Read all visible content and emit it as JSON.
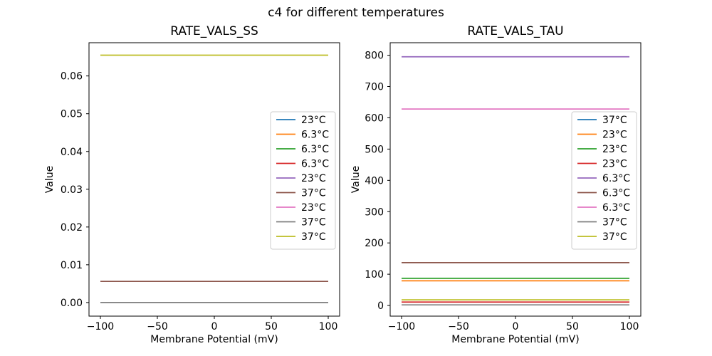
{
  "figure": {
    "suptitle": "c4 for different temperatures",
    "background_color": "#ffffff",
    "text_color": "#000000"
  },
  "chart_data": [
    {
      "type": "line",
      "title": "RATE_VALS_SS",
      "xlabel": "Membrane Potential (mV)",
      "ylabel": "Value",
      "grid": false,
      "legend_position": "center-right",
      "xlim": [
        -110,
        110
      ],
      "ylim": [
        -0.0036,
        0.0688
      ],
      "x_span": [
        -100,
        100
      ],
      "xticks": [
        -100,
        -50,
        0,
        50,
        100
      ],
      "xtick_labels": [
        "−100",
        "−50",
        "0",
        "50",
        "100"
      ],
      "yticks": [
        0,
        0.01,
        0.02,
        0.03,
        0.04,
        0.05,
        0.06
      ],
      "ytick_labels": [
        "0.00",
        "0.01",
        "0.02",
        "0.03",
        "0.04",
        "0.05",
        "0.06"
      ],
      "series": [
        {
          "label": "23°C",
          "color": "#1f77b4",
          "value": null
        },
        {
          "label": "6.3°C",
          "color": "#ff7f0e",
          "value": null
        },
        {
          "label": "6.3°C",
          "color": "#2ca02c",
          "value": null
        },
        {
          "label": "6.3°C",
          "color": "#d62728",
          "value": null
        },
        {
          "label": "23°C",
          "color": "#9467bd",
          "value": null
        },
        {
          "label": "37°C",
          "color": "#8c564b",
          "value": 0.0056
        },
        {
          "label": "23°C",
          "color": "#e377c2",
          "value": null
        },
        {
          "label": "37°C",
          "color": "#7f7f7f",
          "value": 0.0
        },
        {
          "label": "37°C",
          "color": "#bcbd22",
          "value": 0.0655
        }
      ]
    },
    {
      "type": "line",
      "title": "RATE_VALS_TAU",
      "xlabel": "Membrane Potential (mV)",
      "ylabel": "Value",
      "grid": false,
      "legend_position": "center-right",
      "xlim": [
        -110,
        110
      ],
      "ylim": [
        -34,
        840
      ],
      "x_span": [
        -100,
        100
      ],
      "xticks": [
        -100,
        -50,
        0,
        50,
        100
      ],
      "xtick_labels": [
        "−100",
        "−50",
        "0",
        "50",
        "100"
      ],
      "yticks": [
        0,
        100,
        200,
        300,
        400,
        500,
        600,
        700,
        800
      ],
      "ytick_labels": [
        "0",
        "100",
        "200",
        "300",
        "400",
        "500",
        "600",
        "700",
        "800"
      ],
      "series": [
        {
          "label": "37°C",
          "color": "#1f77b4",
          "value": null
        },
        {
          "label": "23°C",
          "color": "#ff7f0e",
          "value": 79
        },
        {
          "label": "23°C",
          "color": "#2ca02c",
          "value": 87
        },
        {
          "label": "23°C",
          "color": "#d62728",
          "value": 11
        },
        {
          "label": "6.3°C",
          "color": "#9467bd",
          "value": 795
        },
        {
          "label": "6.3°C",
          "color": "#8c564b",
          "value": 137
        },
        {
          "label": "6.3°C",
          "color": "#e377c2",
          "value": 628
        },
        {
          "label": "37°C",
          "color": "#7f7f7f",
          "value": 2
        },
        {
          "label": "37°C",
          "color": "#bcbd22",
          "value": 18
        }
      ]
    }
  ]
}
